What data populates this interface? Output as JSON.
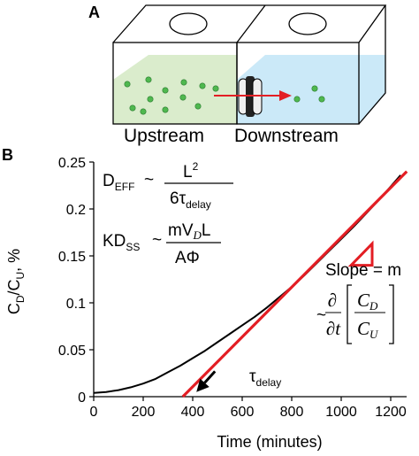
{
  "panel_a": {
    "label": "A",
    "upstream_label": "Upstream",
    "downstream_label": "Downstream",
    "colors": {
      "upstream_fill": "#d8ebc9",
      "downstream_fill": "#c8e8f8",
      "particle": "#4fb84f",
      "arrow": "#e31e24",
      "membrane": "#222222"
    }
  },
  "panel_b": {
    "label": "B",
    "equations": {
      "deff_lhs": "D",
      "deff_sub": "EFF",
      "approx": "~",
      "deff_num": "L",
      "deff_num_sup": "2",
      "deff_den": "6τ",
      "deff_den_sub": "delay",
      "kdss_lhs": "KD",
      "kdss_sub": "SS",
      "kdss_num_a": "mV",
      "kdss_num_b": "D",
      "kdss_num_c": "L",
      "kdss_den": "AΦ"
    },
    "slope_label": "Slope = m",
    "slope_deriv_top": "∂",
    "slope_deriv_bot": "∂t",
    "slope_frac_top": "C",
    "slope_frac_top_sub": "D",
    "slope_frac_bot": "C",
    "slope_frac_bot_sub": "U",
    "tau_label": "τ",
    "tau_sub": "delay"
  },
  "chart_data": {
    "type": "line",
    "xlabel": "Time (minutes)",
    "ylabel": {
      "c": "C",
      "d": "D",
      "slash": "/C",
      "u": "U",
      "unit": ", %"
    },
    "xlim": [
      0,
      1300
    ],
    "ylim": [
      0,
      0.25
    ],
    "xticks": [
      "0",
      "200",
      "400",
      "600",
      "800",
      "1000",
      "1200"
    ],
    "xtick_values": [
      0,
      200,
      400,
      600,
      800,
      1000,
      1200
    ],
    "yticks": [
      "0",
      "0.05",
      "0.1",
      "0.15",
      "0.2",
      "0.25"
    ],
    "ytick_values": [
      0,
      0.05,
      0.1,
      0.15,
      0.2,
      0.25
    ],
    "grid": false,
    "series": [
      {
        "kind": "measured",
        "color": "#000000",
        "x": [
          0,
          50,
          100,
          150,
          200,
          250,
          300,
          350,
          400,
          450,
          500,
          550,
          600,
          650,
          700,
          750,
          800,
          850,
          900,
          950,
          1000,
          1050,
          1100,
          1150,
          1200,
          1240
        ],
        "y": [
          0.004,
          0.005,
          0.007,
          0.01,
          0.014,
          0.019,
          0.026,
          0.033,
          0.041,
          0.049,
          0.058,
          0.067,
          0.076,
          0.085,
          0.095,
          0.106,
          0.117,
          0.129,
          0.142,
          0.155,
          0.168,
          0.181,
          0.195,
          0.209,
          0.224,
          0.236
        ]
      },
      {
        "kind": "linear-fit",
        "color": "#e31e24",
        "x": [
          360,
          1265
        ],
        "y": [
          0,
          0.24
        ]
      }
    ],
    "annotations": [
      {
        "kind": "tau-arrow",
        "color": "#000000",
        "x_from": 490,
        "y_from": 0.027,
        "x_to": 415,
        "y_to": 0.005
      },
      {
        "kind": "slope-triangle",
        "color": "#e31e24",
        "x": [
          1040,
          1125,
          1125
        ],
        "y": [
          0.14,
          0.163,
          0.14
        ]
      }
    ]
  }
}
